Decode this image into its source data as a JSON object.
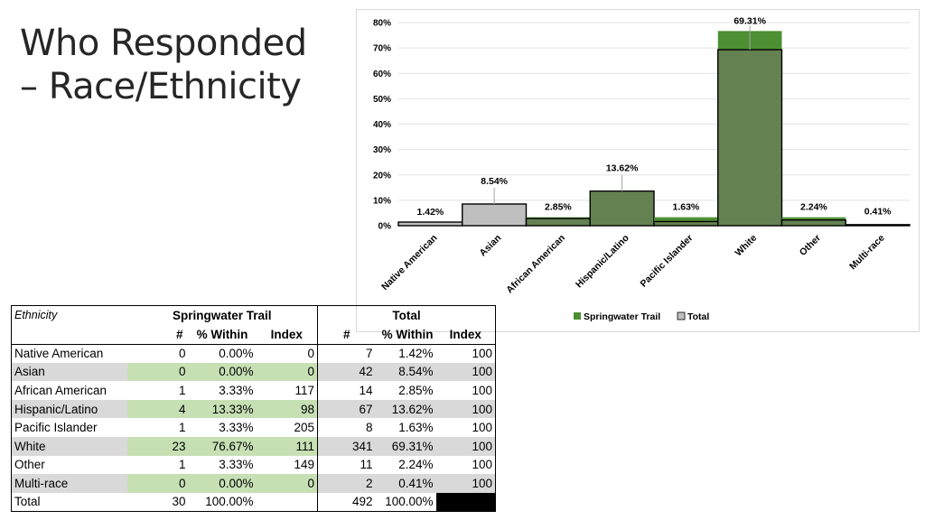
{
  "slide": {
    "title_line1": "Who Responded",
    "title_line2": "– Race/Ethnicity"
  },
  "colors": {
    "springwater": "#4e8f34",
    "total_gray": "#bfbfbf",
    "overlap_green": "#648152",
    "row_green": "#c6e0b4",
    "row_gray": "#d9d9d9"
  },
  "chart_data": {
    "type": "bar",
    "categories": [
      "Native American",
      "Asian",
      "African American",
      "Hispanic/Latino",
      "Pacific Islander",
      "White",
      "Other",
      "Multi-race"
    ],
    "series": [
      {
        "name": "Springwater Trail",
        "values": [
          0.0,
          0.0,
          3.33,
          13.33,
          3.33,
          76.67,
          3.33,
          0.0
        ]
      },
      {
        "name": "Total",
        "values": [
          1.42,
          8.54,
          2.85,
          13.62,
          1.63,
          69.31,
          2.24,
          0.41
        ]
      }
    ],
    "data_labels": [
      "1.42%",
      "8.54%",
      "2.85%",
      "13.62%",
      "1.63%",
      "69.31%",
      "2.24%",
      "0.41%"
    ],
    "y_ticks": [
      "0%",
      "10%",
      "20%",
      "30%",
      "40%",
      "50%",
      "60%",
      "70%",
      "80%"
    ],
    "ylim": [
      0,
      80
    ],
    "grid": true,
    "legend_position": "bottom-right",
    "overlay": "total series drawn as outlined bars over springwater bars"
  },
  "table": {
    "header_ethnicity": "Ethnicity",
    "group1": "Springwater Trail",
    "group2": "Total",
    "col_count": "#",
    "col_within": "% Within",
    "col_index": "Index",
    "rows": [
      {
        "label": "Native American",
        "sw_n": "0",
        "sw_pct": "0.00%",
        "sw_idx": "0",
        "t_n": "7",
        "t_pct": "1.42%",
        "t_idx": "100"
      },
      {
        "label": "Asian",
        "sw_n": "0",
        "sw_pct": "0.00%",
        "sw_idx": "0",
        "t_n": "42",
        "t_pct": "8.54%",
        "t_idx": "100"
      },
      {
        "label": "African American",
        "sw_n": "1",
        "sw_pct": "3.33%",
        "sw_idx": "117",
        "t_n": "14",
        "t_pct": "2.85%",
        "t_idx": "100"
      },
      {
        "label": "Hispanic/Latino",
        "sw_n": "4",
        "sw_pct": "13.33%",
        "sw_idx": "98",
        "t_n": "67",
        "t_pct": "13.62%",
        "t_idx": "100"
      },
      {
        "label": "Pacific Islander",
        "sw_n": "1",
        "sw_pct": "3.33%",
        "sw_idx": "205",
        "t_n": "8",
        "t_pct": "1.63%",
        "t_idx": "100"
      },
      {
        "label": "White",
        "sw_n": "23",
        "sw_pct": "76.67%",
        "sw_idx": "111",
        "t_n": "341",
        "t_pct": "69.31%",
        "t_idx": "100"
      },
      {
        "label": "Other",
        "sw_n": "1",
        "sw_pct": "3.33%",
        "sw_idx": "149",
        "t_n": "11",
        "t_pct": "2.24%",
        "t_idx": "100"
      },
      {
        "label": "Multi-race",
        "sw_n": "0",
        "sw_pct": "0.00%",
        "sw_idx": "0",
        "t_n": "2",
        "t_pct": "0.41%",
        "t_idx": "100"
      }
    ],
    "total_row": {
      "label": "Total",
      "sw_n": "30",
      "sw_pct": "100.00%",
      "t_n": "492",
      "t_pct": "100.00%"
    }
  }
}
